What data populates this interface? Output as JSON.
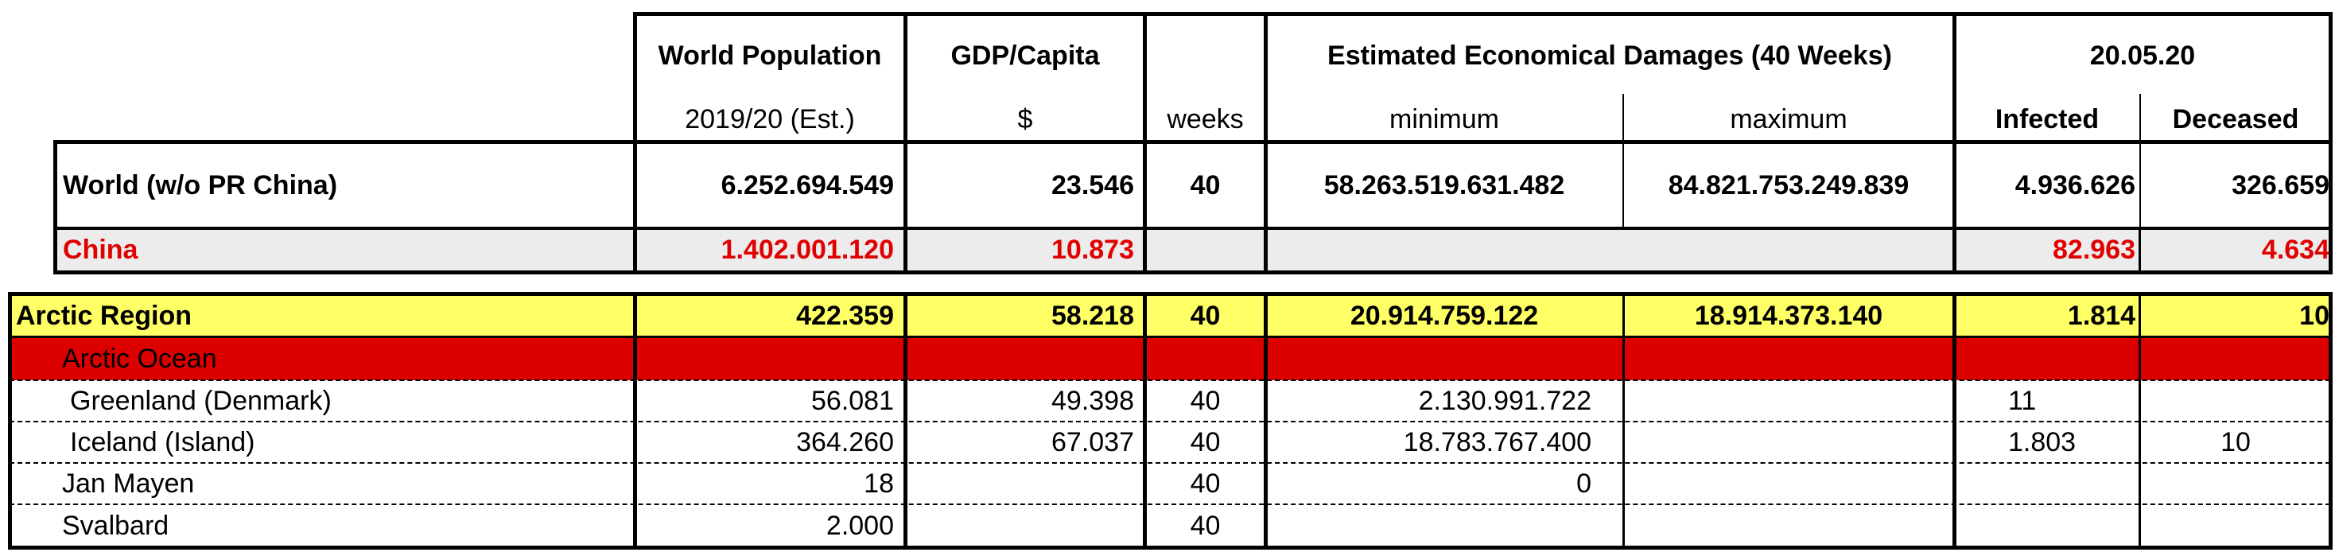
{
  "header": {
    "world_population": "World Population",
    "gdp_capita": "GDP/Capita",
    "damages_title": "Estimated Economical Damages (40 Weeks)",
    "date": "20.05.20",
    "pop_sub": "2019/20 (Est.)",
    "gdp_sub": "$",
    "weeks_sub": "weeks",
    "min_sub": "minimum",
    "max_sub": "maximum",
    "infected_sub": "Infected",
    "deceased_sub": "Deceased"
  },
  "world": {
    "name": "World (w/o PR China)",
    "population": "6.252.694.549",
    "gdp": "23.546",
    "weeks": "40",
    "min": "58.263.519.631.482",
    "max": "84.821.753.249.839",
    "infected": "4.936.626",
    "deceased": "326.659"
  },
  "china": {
    "name": "China",
    "population": "1.402.001.120",
    "gdp": "10.873",
    "infected": "82.963",
    "deceased": "4.634"
  },
  "region": {
    "name": "Arctic Region",
    "population": "422.359",
    "gdp": "58.218",
    "weeks": "40",
    "min": "20.914.759.122",
    "max": "18.914.373.140",
    "infected": "1.814",
    "deceased": "10"
  },
  "subregion": {
    "name": "Arctic Ocean"
  },
  "rows": [
    {
      "name": "Greenland (Denmark)",
      "population": "56.081",
      "gdp": "49.398",
      "weeks": "40",
      "min": "2.130.991.722",
      "max": "",
      "infected": "11",
      "deceased": ""
    },
    {
      "name": "Iceland (Island)",
      "population": "364.260",
      "gdp": "67.037",
      "weeks": "40",
      "min": "18.783.767.400",
      "max": "",
      "infected": "1.803",
      "deceased": "10"
    },
    {
      "name": "Jan Mayen",
      "population": "18",
      "gdp": "",
      "weeks": "40",
      "min": "0",
      "max": "",
      "infected": "",
      "deceased": ""
    },
    {
      "name": "Svalbard",
      "population": "2.000",
      "gdp": "",
      "weeks": "40",
      "min": "",
      "max": "",
      "infected": "",
      "deceased": ""
    }
  ],
  "colors": {
    "yellow": "#ffff66",
    "red_band": "#dd0000",
    "grey": "#ececec",
    "red_text": "#e00000"
  }
}
